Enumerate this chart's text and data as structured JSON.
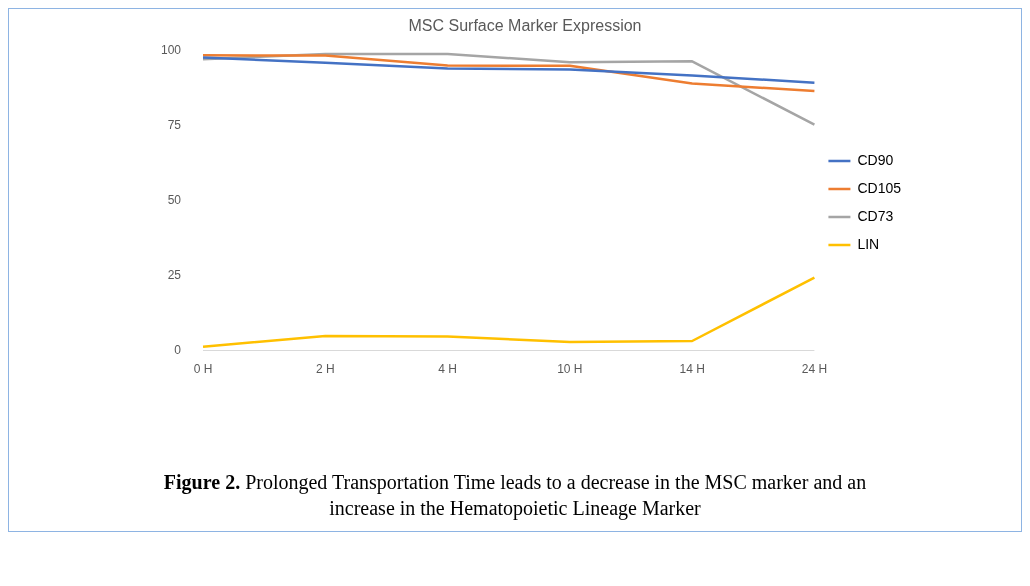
{
  "chart_data": {
    "type": "line",
    "title": "MSC Surface Marker Expression",
    "categories": [
      "0 H",
      "2 H",
      "4 H",
      "10 H",
      "14 H",
      "24 H"
    ],
    "series": [
      {
        "name": "CD90",
        "color": "#4472c4",
        "values": [
          97.6,
          95.8,
          93.9,
          93.6,
          91.6,
          89.2
        ]
      },
      {
        "name": "CD105",
        "color": "#ed7d31",
        "values": [
          98.3,
          98.2,
          94.9,
          94.8,
          88.9,
          86.4
        ]
      },
      {
        "name": "CD73",
        "color": "#a5a5a5",
        "values": [
          97,
          98.7,
          98.7,
          96,
          96.3,
          75.2
        ]
      },
      {
        "name": "LIN",
        "color": "#ffc000",
        "values": [
          1.3,
          4.9,
          4.7,
          2.9,
          3.2,
          24.3
        ]
      }
    ],
    "ylim": [
      0,
      100
    ],
    "yticks": [
      0,
      25,
      50,
      75,
      100
    ],
    "grid": false,
    "legend": "right",
    "marker": "none",
    "line_style": "solid",
    "annotations": [
      "Figure 2.",
      "Prolonged Transportation Time leads to a decrease in the MSC marker and an increase in the Hematopoietic Lineage Marker"
    ]
  }
}
